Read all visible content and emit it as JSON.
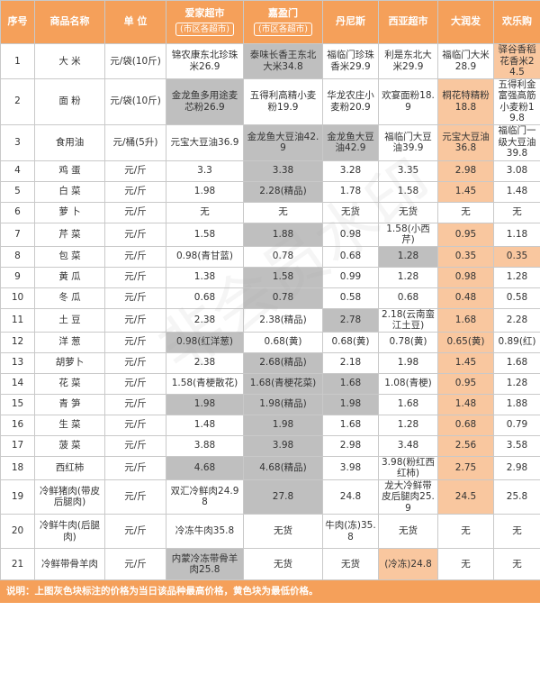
{
  "header": {
    "seq": "序号",
    "name": "商品名称",
    "unit": "单 位",
    "stores": [
      {
        "name": "爱家超市",
        "sub": "(市区各超市)"
      },
      {
        "name": "嘉盈门",
        "sub": "(市区各超市)"
      },
      {
        "name": "丹尼斯",
        "sub": ""
      },
      {
        "name": "西亚超市",
        "sub": ""
      },
      {
        "name": "大润发",
        "sub": ""
      },
      {
        "name": "欢乐购",
        "sub": ""
      }
    ]
  },
  "rows": [
    {
      "no": "1",
      "name": "大 米",
      "unit": "元/袋(10斤)",
      "cells": [
        {
          "v": "锦农康东北珍珠米26.9",
          "c": ""
        },
        {
          "v": "泰味长香王东北大米34.8",
          "c": "hi"
        },
        {
          "v": "福临门珍珠香米29.9",
          "c": ""
        },
        {
          "v": "利是东北大米29.9",
          "c": ""
        },
        {
          "v": "福临门大米28.9",
          "c": ""
        },
        {
          "v": "驿谷香稻花香米24.5",
          "c": "lo"
        }
      ]
    },
    {
      "no": "2",
      "name": "面 粉",
      "unit": "元/袋(10斤)",
      "cells": [
        {
          "v": "金龙鱼多用途麦芯粉26.9",
          "c": "hi"
        },
        {
          "v": "五得利高精小麦粉19.9",
          "c": ""
        },
        {
          "v": "华龙农庄小麦粉20.9",
          "c": ""
        },
        {
          "v": "欢宴面粉18.9",
          "c": ""
        },
        {
          "v": "桐花特精粉18.8",
          "c": "lo"
        },
        {
          "v": "五得利金富强高筋小麦粉19.8",
          "c": ""
        }
      ]
    },
    {
      "no": "3",
      "name": "食用油",
      "unit": "元/桶(5升)",
      "cells": [
        {
          "v": "元宝大豆油36.9",
          "c": ""
        },
        {
          "v": "金龙鱼大豆油42.9",
          "c": "hi"
        },
        {
          "v": "金龙鱼大豆油42.9",
          "c": "hi"
        },
        {
          "v": "福临门大豆油39.9",
          "c": ""
        },
        {
          "v": "元宝大豆油36.8",
          "c": "lo"
        },
        {
          "v": "福临门一级大豆油39.8",
          "c": ""
        }
      ]
    },
    {
      "no": "4",
      "name": "鸡 蛋",
      "unit": "元/斤",
      "cells": [
        {
          "v": "3.3",
          "c": ""
        },
        {
          "v": "3.38",
          "c": "hi"
        },
        {
          "v": "3.28",
          "c": ""
        },
        {
          "v": "3.35",
          "c": ""
        },
        {
          "v": "2.98",
          "c": "lo"
        },
        {
          "v": "3.08",
          "c": ""
        }
      ]
    },
    {
      "no": "5",
      "name": "白 菜",
      "unit": "元/斤",
      "cells": [
        {
          "v": "1.98",
          "c": ""
        },
        {
          "v": "2.28(精品)",
          "c": "hi"
        },
        {
          "v": "1.78",
          "c": ""
        },
        {
          "v": "1.58",
          "c": ""
        },
        {
          "v": "1.45",
          "c": "lo"
        },
        {
          "v": "1.48",
          "c": ""
        }
      ]
    },
    {
      "no": "6",
      "name": "萝 卜",
      "unit": "元/斤",
      "cells": [
        {
          "v": "无",
          "c": ""
        },
        {
          "v": "无",
          "c": ""
        },
        {
          "v": "无货",
          "c": ""
        },
        {
          "v": "无货",
          "c": ""
        },
        {
          "v": "无",
          "c": ""
        },
        {
          "v": "无",
          "c": ""
        }
      ]
    },
    {
      "no": "7",
      "name": "芹 菜",
      "unit": "元/斤",
      "cells": [
        {
          "v": "1.58",
          "c": ""
        },
        {
          "v": "1.88",
          "c": "hi"
        },
        {
          "v": "0.98",
          "c": ""
        },
        {
          "v": "1.58(小西芹)",
          "c": ""
        },
        {
          "v": "0.95",
          "c": "lo"
        },
        {
          "v": "1.18",
          "c": ""
        }
      ]
    },
    {
      "no": "8",
      "name": "包 菜",
      "unit": "元/斤",
      "cells": [
        {
          "v": "0.98(青甘蓝)",
          "c": ""
        },
        {
          "v": "0.78",
          "c": ""
        },
        {
          "v": "0.68",
          "c": ""
        },
        {
          "v": "1.28",
          "c": "hi"
        },
        {
          "v": "0.35",
          "c": "lo"
        },
        {
          "v": "0.35",
          "c": "lo"
        }
      ]
    },
    {
      "no": "9",
      "name": "黄 瓜",
      "unit": "元/斤",
      "cells": [
        {
          "v": "1.38",
          "c": ""
        },
        {
          "v": "1.58",
          "c": "hi"
        },
        {
          "v": "0.99",
          "c": ""
        },
        {
          "v": "1.28",
          "c": ""
        },
        {
          "v": "0.98",
          "c": "lo"
        },
        {
          "v": "1.28",
          "c": ""
        }
      ]
    },
    {
      "no": "10",
      "name": "冬 瓜",
      "unit": "元/斤",
      "cells": [
        {
          "v": "0.68",
          "c": ""
        },
        {
          "v": "0.78",
          "c": "hi"
        },
        {
          "v": "0.58",
          "c": ""
        },
        {
          "v": "0.68",
          "c": ""
        },
        {
          "v": "0.48",
          "c": "lo"
        },
        {
          "v": "0.58",
          "c": ""
        }
      ]
    },
    {
      "no": "11",
      "name": "土 豆",
      "unit": "元/斤",
      "cells": [
        {
          "v": "2.38",
          "c": ""
        },
        {
          "v": "2.38(精品)",
          "c": ""
        },
        {
          "v": "2.78",
          "c": "hi"
        },
        {
          "v": "2.18(云南蛮江土豆)",
          "c": ""
        },
        {
          "v": "1.68",
          "c": "lo"
        },
        {
          "v": "2.28",
          "c": ""
        }
      ]
    },
    {
      "no": "12",
      "name": "洋 葱",
      "unit": "元/斤",
      "cells": [
        {
          "v": "0.98(红洋葱)",
          "c": "hi"
        },
        {
          "v": "0.68(黄)",
          "c": ""
        },
        {
          "v": "0.68(黄)",
          "c": ""
        },
        {
          "v": "0.78(黄)",
          "c": ""
        },
        {
          "v": "0.65(黄)",
          "c": "lo"
        },
        {
          "v": "0.89(红)",
          "c": ""
        }
      ]
    },
    {
      "no": "13",
      "name": "胡萝卜",
      "unit": "元/斤",
      "cells": [
        {
          "v": "2.38",
          "c": ""
        },
        {
          "v": "2.68(精品)",
          "c": "hi"
        },
        {
          "v": "2.18",
          "c": ""
        },
        {
          "v": "1.98",
          "c": ""
        },
        {
          "v": "1.45",
          "c": "lo"
        },
        {
          "v": "1.68",
          "c": ""
        }
      ]
    },
    {
      "no": "14",
      "name": "花 菜",
      "unit": "元/斤",
      "cells": [
        {
          "v": "1.58(青梗散花)",
          "c": ""
        },
        {
          "v": "1.68(青梗花菜)",
          "c": "hi"
        },
        {
          "v": "1.68",
          "c": "hi"
        },
        {
          "v": "1.08(青梗)",
          "c": ""
        },
        {
          "v": "0.95",
          "c": "lo"
        },
        {
          "v": "1.28",
          "c": ""
        }
      ]
    },
    {
      "no": "15",
      "name": "青 笋",
      "unit": "元/斤",
      "cells": [
        {
          "v": "1.98",
          "c": "hi"
        },
        {
          "v": "1.98(精品)",
          "c": "hi"
        },
        {
          "v": "1.98",
          "c": "hi"
        },
        {
          "v": "1.68",
          "c": ""
        },
        {
          "v": "1.48",
          "c": "lo"
        },
        {
          "v": "1.88",
          "c": ""
        }
      ]
    },
    {
      "no": "16",
      "name": "生 菜",
      "unit": "元/斤",
      "cells": [
        {
          "v": "1.48",
          "c": ""
        },
        {
          "v": "1.98",
          "c": "hi"
        },
        {
          "v": "1.68",
          "c": ""
        },
        {
          "v": "1.28",
          "c": ""
        },
        {
          "v": "0.68",
          "c": "lo"
        },
        {
          "v": "0.79",
          "c": ""
        }
      ]
    },
    {
      "no": "17",
      "name": "菠 菜",
      "unit": "元/斤",
      "cells": [
        {
          "v": "3.88",
          "c": ""
        },
        {
          "v": "3.98",
          "c": "hi"
        },
        {
          "v": "2.98",
          "c": ""
        },
        {
          "v": "3.48",
          "c": ""
        },
        {
          "v": "2.56",
          "c": "lo"
        },
        {
          "v": "3.58",
          "c": ""
        }
      ]
    },
    {
      "no": "18",
      "name": "西红柿",
      "unit": "元/斤",
      "cells": [
        {
          "v": "4.68",
          "c": "hi"
        },
        {
          "v": "4.68(精品)",
          "c": "hi"
        },
        {
          "v": "3.98",
          "c": ""
        },
        {
          "v": "3.98(粉红西红柿)",
          "c": ""
        },
        {
          "v": "2.75",
          "c": "lo"
        },
        {
          "v": "2.98",
          "c": ""
        }
      ]
    },
    {
      "no": "19",
      "name": "冷鲜猪肉(带皮后腿肉)",
      "unit": "元/斤",
      "cells": [
        {
          "v": "双汇冷鲜肉24.98",
          "c": ""
        },
        {
          "v": "27.8",
          "c": "hi"
        },
        {
          "v": "24.8",
          "c": ""
        },
        {
          "v": "龙大冷鲜带皮后腿肉25.9",
          "c": ""
        },
        {
          "v": "24.5",
          "c": "lo"
        },
        {
          "v": "25.8",
          "c": ""
        }
      ]
    },
    {
      "no": "20",
      "name": "冷鲜牛肉(后腿肉)",
      "unit": "元/斤",
      "cells": [
        {
          "v": "冷冻牛肉35.8",
          "c": ""
        },
        {
          "v": "无货",
          "c": ""
        },
        {
          "v": "牛肉(冻)35.8",
          "c": ""
        },
        {
          "v": "无货",
          "c": ""
        },
        {
          "v": "无",
          "c": ""
        },
        {
          "v": "无",
          "c": ""
        }
      ]
    },
    {
      "no": "21",
      "name": "冷鲜带骨羊肉",
      "unit": "元/斤",
      "cells": [
        {
          "v": "内蒙冷冻带骨羊肉25.8",
          "c": "hi"
        },
        {
          "v": "无货",
          "c": ""
        },
        {
          "v": "无货",
          "c": ""
        },
        {
          "v": "(冷冻)24.8",
          "c": "lo"
        },
        {
          "v": "无",
          "c": ""
        },
        {
          "v": "无",
          "c": ""
        }
      ]
    }
  ],
  "note": "说明：上图灰色块标注的价格为当日该品种最高价格，黄色块为最低价格。",
  "watermark": "非会员水印",
  "colors": {
    "header": "#f5a05a",
    "highest": "#bfbfbf",
    "lowest": "#f9c79f"
  }
}
